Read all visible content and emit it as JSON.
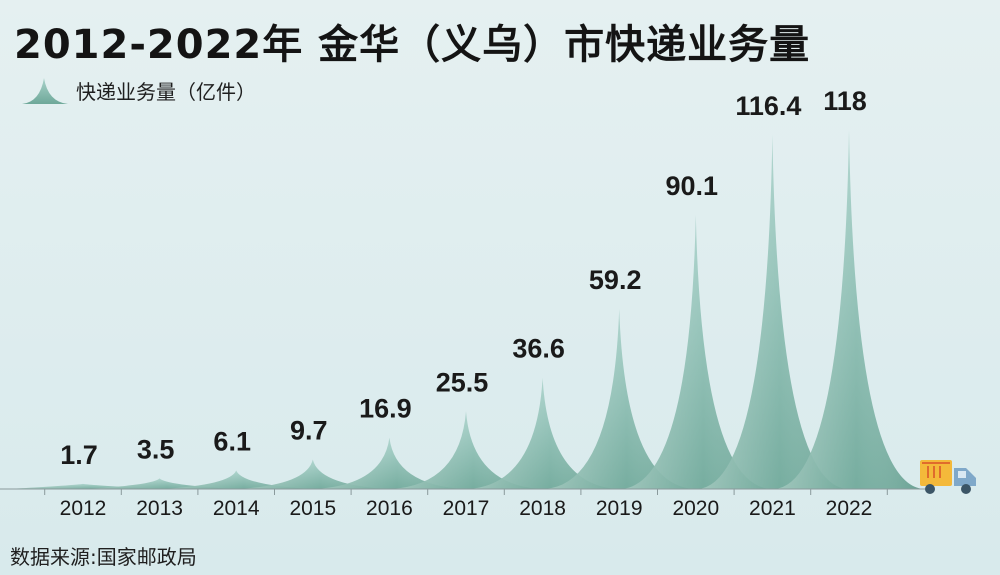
{
  "header": {
    "title": "2012-2022年 金华（义乌）市快递业务量"
  },
  "legend": {
    "label": "快递业务量（亿件）",
    "icon": "spike-icon"
  },
  "source": "数据来源:国家邮政局",
  "colors": {
    "background": "#ddecee",
    "peak_light": "#a9d2ca",
    "peak_dark": "#6ea899",
    "text": "#1a1a1a",
    "truck_box": "#f4b93a",
    "truck_cab": "#7fa8c9"
  },
  "chart_data": {
    "type": "area",
    "categories": [
      "2012",
      "2013",
      "2014",
      "2015",
      "2016",
      "2017",
      "2018",
      "2019",
      "2020",
      "2021",
      "2022"
    ],
    "series": [
      {
        "name": "快递业务量（亿件）",
        "values": [
          1.7,
          3.5,
          6.1,
          9.7,
          16.9,
          25.5,
          36.6,
          59.2,
          90.1,
          116.4,
          118
        ]
      }
    ],
    "value_labels": [
      "1.7",
      "3.5",
      "6.1",
      "9.7",
      "16.9",
      "25.5",
      "36.6",
      "59.2",
      "90.1",
      "116.4",
      "118"
    ],
    "ylim": [
      0,
      118
    ],
    "grid": false,
    "legend_position": "top-left"
  }
}
